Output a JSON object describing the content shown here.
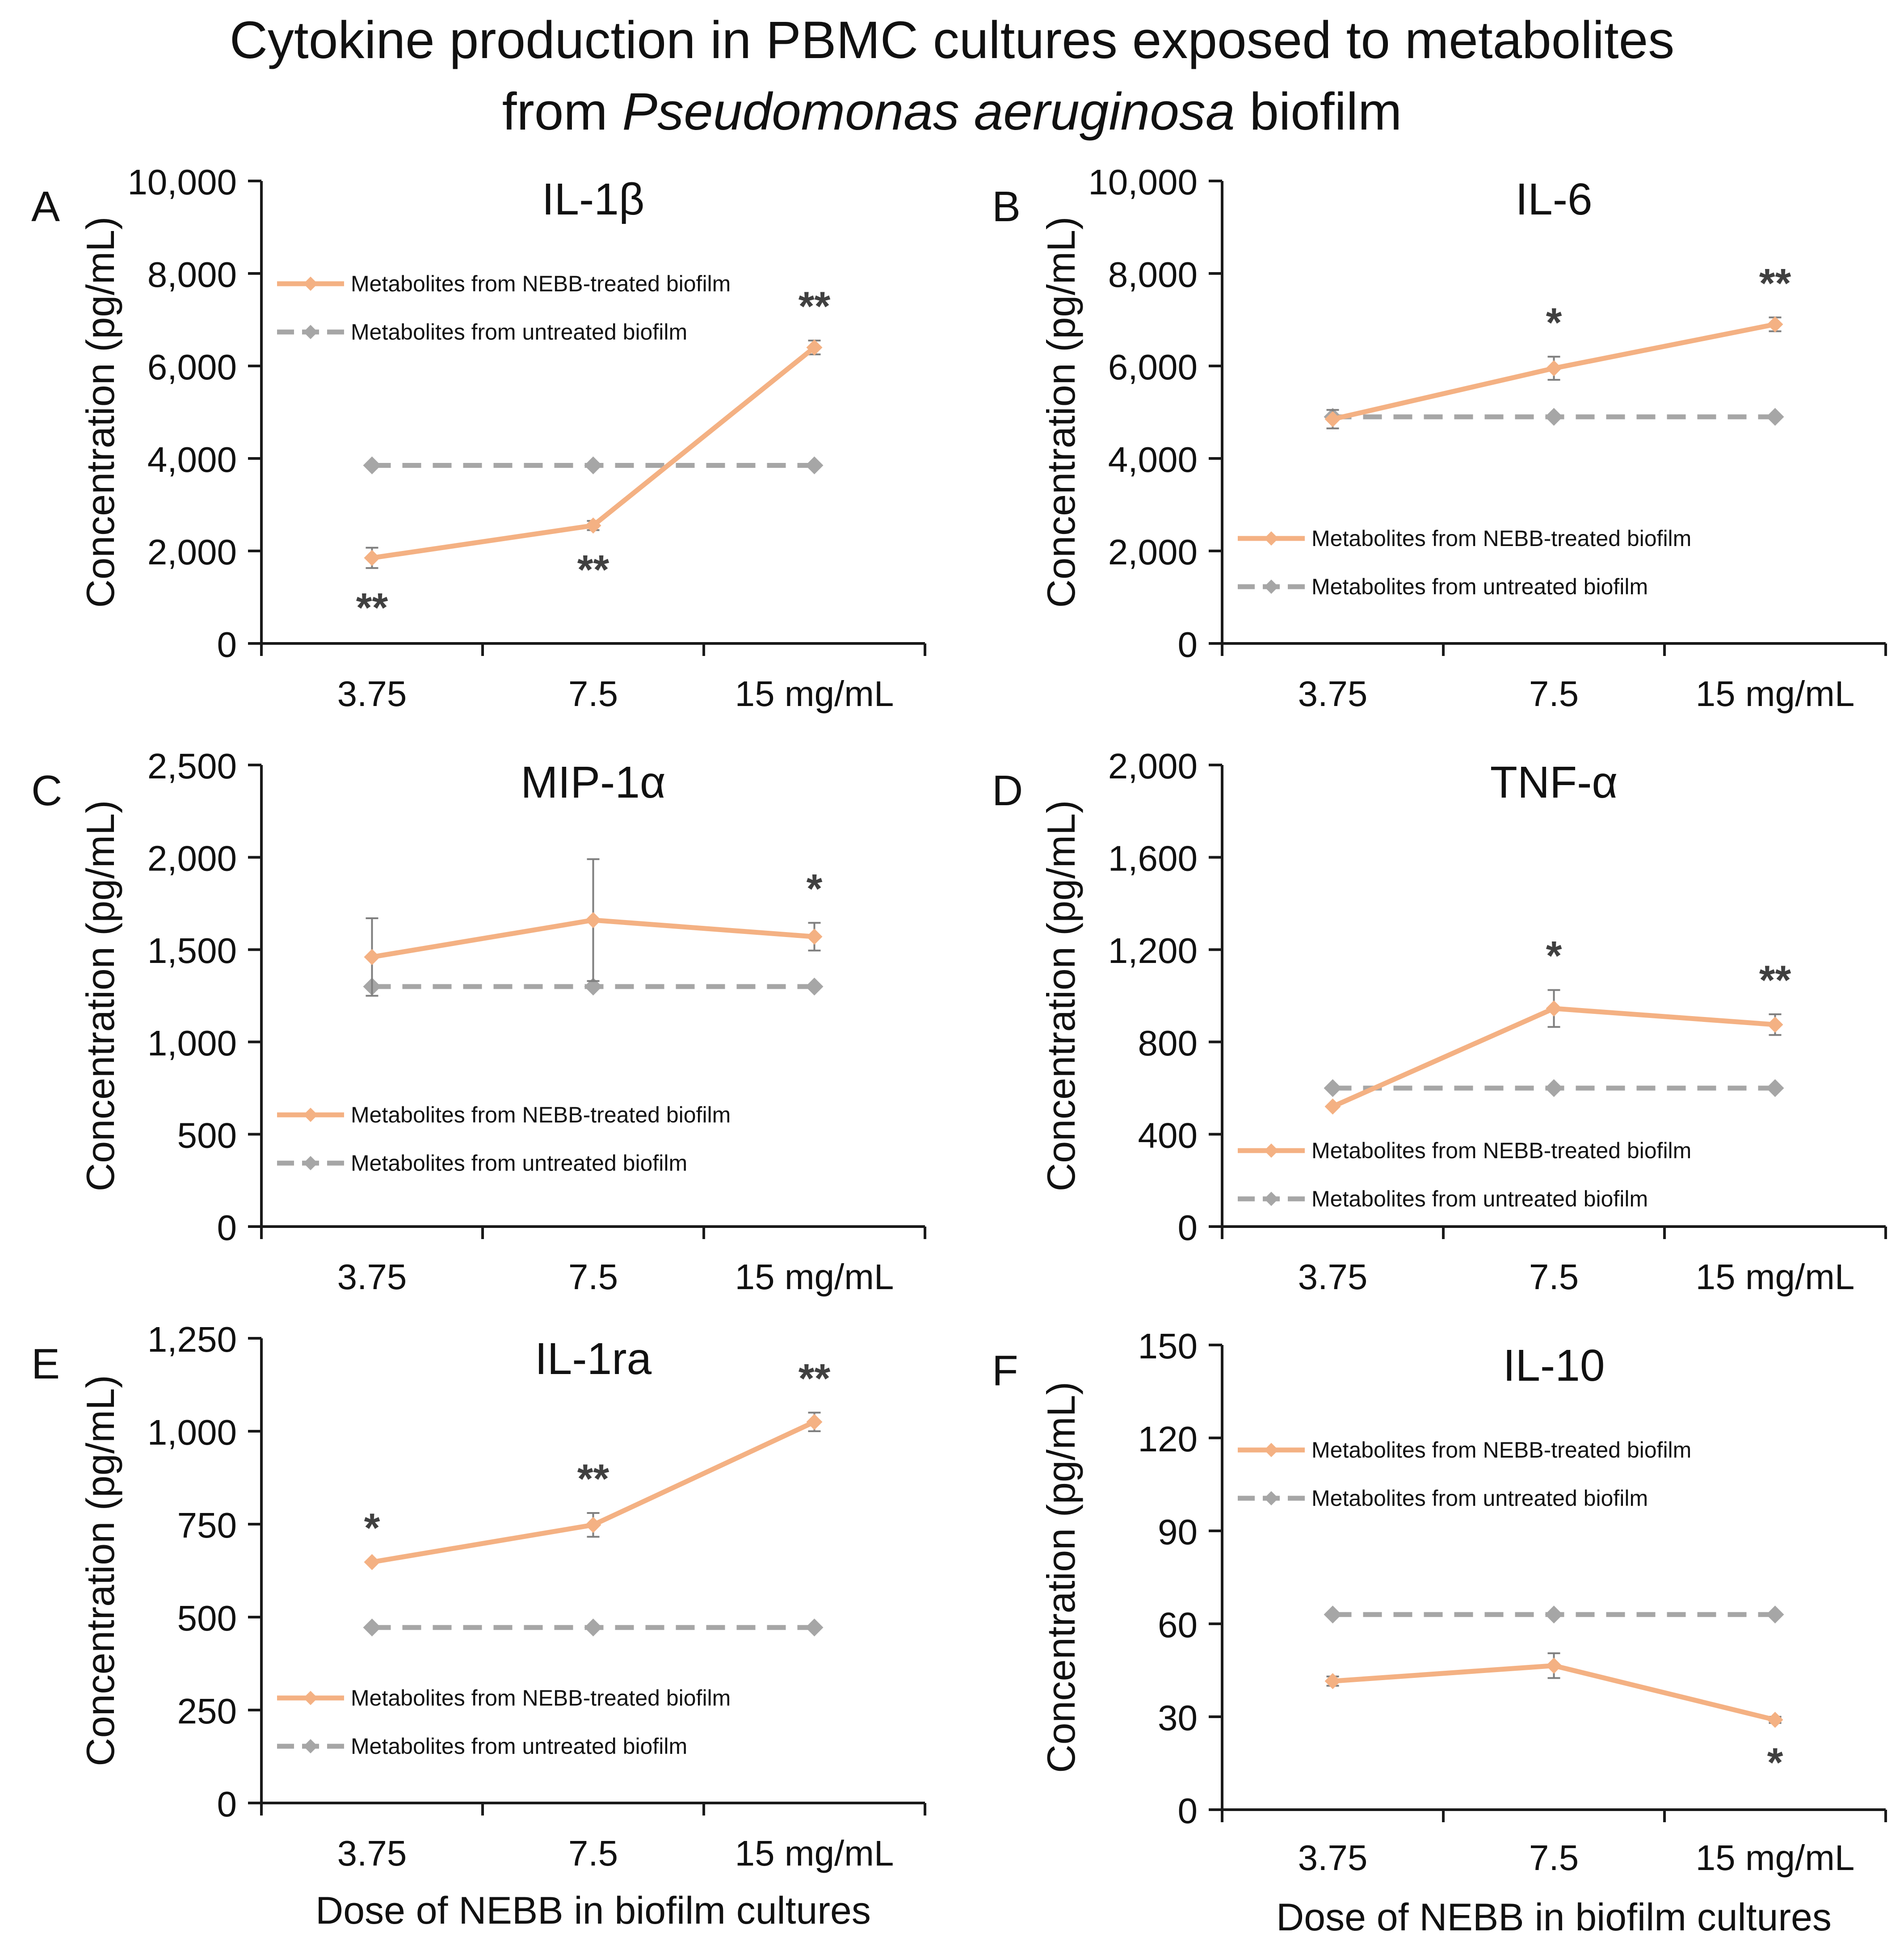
{
  "figure": {
    "title_line1": "Cytokine production in PBMC cultures exposed to metabolites",
    "title_line2_pre": "from ",
    "title_line2_italic": "Pseudomonas aeruginosa",
    "title_line2_post": " biofilm"
  },
  "colors": {
    "treated": "#F4B183",
    "untreated": "#A6A6A6",
    "axis": "#1a1a1a",
    "errorbar": "#7f7f7f",
    "star": "#404040"
  },
  "chart_data": [
    {
      "panel": "A",
      "type": "line",
      "title": "IL-1β",
      "ylabel": "Concentration (pg/mL)",
      "xlabel": "",
      "categories": [
        "3.75",
        "7.5",
        "15 mg/mL"
      ],
      "ylim": [
        0,
        10000
      ],
      "yticks": [
        "0",
        "2,000",
        "4,000",
        "6,000",
        "8,000",
        "10,000"
      ],
      "legend_position": "top-left",
      "series": [
        {
          "name": "Metabolites from NEBB-treated biofilm",
          "values": [
            1850,
            2550,
            6400
          ],
          "errors": [
            220,
            100,
            150
          ]
        },
        {
          "name": "Metabolites from untreated biofilm",
          "values": [
            3850,
            3850,
            3850
          ]
        }
      ],
      "annotations": [
        {
          "category": "3.75",
          "text": "**",
          "position": "below"
        },
        {
          "category": "7.5",
          "text": "**",
          "position": "below"
        },
        {
          "category": "15 mg/mL",
          "text": "**",
          "position": "above"
        }
      ]
    },
    {
      "panel": "B",
      "type": "line",
      "title": "IL-6",
      "ylabel": "Concentration (pg/mL)",
      "xlabel": "",
      "categories": [
        "3.75",
        "7.5",
        "15 mg/mL"
      ],
      "ylim": [
        0,
        10000
      ],
      "yticks": [
        "0",
        "2,000",
        "4,000",
        "6,000",
        "8,000",
        "10,000"
      ],
      "legend_position": "bottom-left",
      "series": [
        {
          "name": "Metabolites from NEBB-treated biofilm",
          "values": [
            4850,
            5950,
            6900
          ],
          "errors": [
            200,
            250,
            150
          ]
        },
        {
          "name": "Metabolites from untreated biofilm",
          "values": [
            4900,
            4900,
            4900
          ]
        }
      ],
      "annotations": [
        {
          "category": "7.5",
          "text": "*",
          "position": "above"
        },
        {
          "category": "15 mg/mL",
          "text": "**",
          "position": "above"
        }
      ]
    },
    {
      "panel": "C",
      "type": "line",
      "title": "MIP-1α",
      "ylabel": "Concentration (pg/mL)",
      "xlabel": "",
      "categories": [
        "3.75",
        "7.5",
        "15 mg/mL"
      ],
      "ylim": [
        0,
        2500
      ],
      "yticks": [
        "0",
        "500",
        "1,000",
        "1,500",
        "2,000",
        "2,500"
      ],
      "legend_position": "bottom-left",
      "series": [
        {
          "name": "Metabolites from NEBB-treated biofilm",
          "values": [
            1460,
            1660,
            1570
          ],
          "errors": [
            210,
            330,
            75
          ]
        },
        {
          "name": "Metabolites from untreated biofilm",
          "values": [
            1300,
            1300,
            1300
          ]
        }
      ],
      "annotations": [
        {
          "category": "15 mg/mL",
          "text": "*",
          "position": "above"
        }
      ]
    },
    {
      "panel": "D",
      "type": "line",
      "title": "TNF-α",
      "ylabel": "Concentration (pg/mL)",
      "xlabel": "",
      "categories": [
        "3.75",
        "7.5",
        "15 mg/mL"
      ],
      "ylim": [
        0,
        2000
      ],
      "yticks": [
        "0",
        "400",
        "800",
        "1,200",
        "1,600",
        "2,000"
      ],
      "legend_position": "bottom-left",
      "series": [
        {
          "name": "Metabolites from NEBB-treated biofilm",
          "values": [
            520,
            945,
            875
          ],
          "errors": [
            0,
            80,
            45
          ]
        },
        {
          "name": "Metabolites from untreated biofilm",
          "values": [
            600,
            600,
            600
          ]
        }
      ],
      "annotations": [
        {
          "category": "7.5",
          "text": "*",
          "position": "above"
        },
        {
          "category": "15 mg/mL",
          "text": "**",
          "position": "above"
        }
      ]
    },
    {
      "panel": "E",
      "type": "line",
      "title": "IL-1ra",
      "ylabel": "Concentration (pg/mL)",
      "xlabel": "Dose of NEBB in biofilm cultures",
      "categories": [
        "3.75",
        "7.5",
        "15 mg/mL"
      ],
      "ylim": [
        0,
        1250
      ],
      "yticks": [
        "0",
        "250",
        "500",
        "750",
        "1,000",
        "1,250"
      ],
      "legend_position": "bottom-left",
      "series": [
        {
          "name": "Metabolites from NEBB-treated biofilm",
          "values": [
            648,
            748,
            1025
          ],
          "errors": [
            0,
            32,
            25
          ]
        },
        {
          "name": "Metabolites from untreated biofilm",
          "values": [
            472,
            472,
            472
          ]
        }
      ],
      "annotations": [
        {
          "category": "3.75",
          "text": "*",
          "position": "above"
        },
        {
          "category": "7.5",
          "text": "**",
          "position": "above"
        },
        {
          "category": "15 mg/mL",
          "text": "**",
          "position": "above"
        }
      ]
    },
    {
      "panel": "F",
      "type": "line",
      "title": "IL-10",
      "ylabel": "Concentration (pg/mL)",
      "xlabel": "Dose of NEBB in biofilm cultures",
      "categories": [
        "3.75",
        "7.5",
        "15 mg/mL"
      ],
      "ylim": [
        0,
        150
      ],
      "yticks": [
        "0",
        "30",
        "60",
        "90",
        "120",
        "150"
      ],
      "legend_position": "top-left",
      "series": [
        {
          "name": "Metabolites from NEBB-treated biofilm",
          "values": [
            41.5,
            46.5,
            29
          ],
          "errors": [
            1.5,
            4,
            1
          ]
        },
        {
          "name": "Metabolites from untreated biofilm",
          "values": [
            63,
            63,
            63
          ]
        }
      ],
      "annotations": [
        {
          "category": "15 mg/mL",
          "text": "*",
          "position": "below"
        }
      ]
    }
  ]
}
